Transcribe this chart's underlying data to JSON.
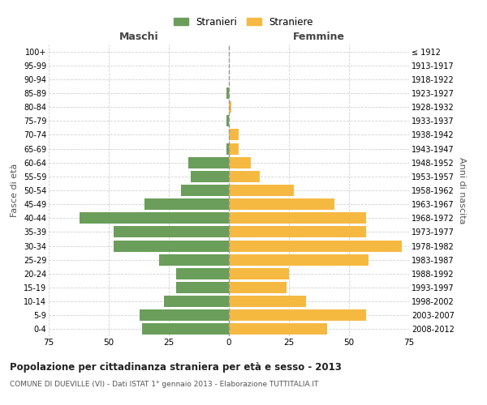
{
  "age_groups": [
    "100+",
    "95-99",
    "90-94",
    "85-89",
    "80-84",
    "75-79",
    "70-74",
    "65-69",
    "60-64",
    "55-59",
    "50-54",
    "45-49",
    "40-44",
    "35-39",
    "30-34",
    "25-29",
    "20-24",
    "15-19",
    "10-14",
    "5-9",
    "0-4"
  ],
  "birth_years": [
    "≤ 1912",
    "1913-1917",
    "1918-1922",
    "1923-1927",
    "1928-1932",
    "1933-1937",
    "1938-1942",
    "1943-1947",
    "1948-1952",
    "1953-1957",
    "1958-1962",
    "1963-1967",
    "1968-1972",
    "1973-1977",
    "1978-1982",
    "1983-1987",
    "1988-1992",
    "1993-1997",
    "1998-2002",
    "2003-2007",
    "2008-2012"
  ],
  "males": [
    0,
    0,
    0,
    1,
    0,
    1,
    0,
    1,
    17,
    16,
    20,
    35,
    62,
    48,
    48,
    29,
    22,
    22,
    27,
    37,
    36
  ],
  "females": [
    0,
    0,
    0,
    0,
    1,
    0,
    4,
    4,
    9,
    13,
    27,
    44,
    57,
    57,
    72,
    58,
    25,
    24,
    32,
    57,
    41
  ],
  "male_color": "#6a9e5a",
  "female_color": "#f5b942",
  "bg_color": "#ffffff",
  "grid_color": "#cccccc",
  "bar_height": 0.82,
  "xlim": 75,
  "title": "Popolazione per cittadinanza straniera per età e sesso - 2013",
  "subtitle": "COMUNE DI DUEVILLE (VI) - Dati ISTAT 1° gennaio 2013 - Elaborazione TUTTITALIA.IT",
  "xlabel_left": "Maschi",
  "xlabel_right": "Femmine",
  "ylabel_left": "Fasce di età",
  "ylabel_right": "Anni di nascita",
  "legend_male": "Stranieri",
  "legend_female": "Straniere"
}
